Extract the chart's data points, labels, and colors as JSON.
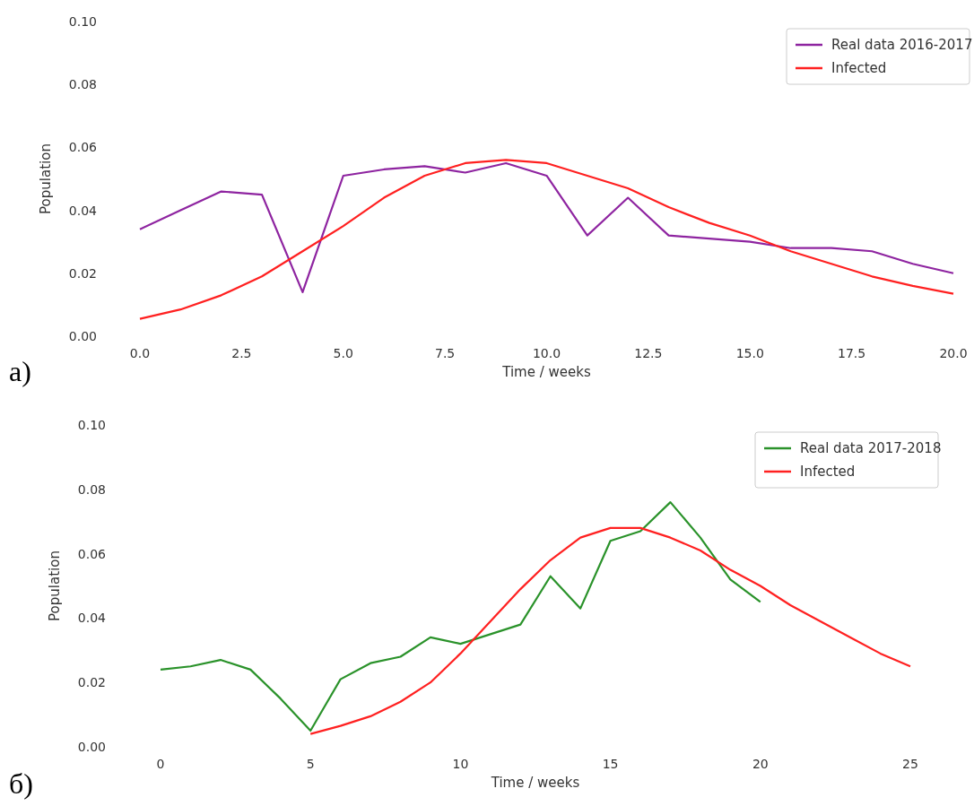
{
  "chart_data": [
    {
      "type": "line",
      "xlabel": "Time / weeks",
      "ylabel": "Population",
      "xlim": [
        0,
        20
      ],
      "ylim": [
        0,
        0.1
      ],
      "xticks": [
        {
          "value": 0,
          "label": "0.0"
        },
        {
          "value": 2.5,
          "label": "2.5"
        },
        {
          "value": 5,
          "label": "5.0"
        },
        {
          "value": 7.5,
          "label": "7.5"
        },
        {
          "value": 10,
          "label": "10.0"
        },
        {
          "value": 12.5,
          "label": "12.5"
        },
        {
          "value": 15,
          "label": "15.0"
        },
        {
          "value": 17.5,
          "label": "17.5"
        },
        {
          "value": 20,
          "label": "20.0"
        }
      ],
      "yticks": [
        {
          "value": 0,
          "label": "0.00"
        },
        {
          "value": 0.02,
          "label": "0.02"
        },
        {
          "value": 0.04,
          "label": "0.04"
        },
        {
          "value": 0.06,
          "label": "0.06"
        },
        {
          "value": 0.08,
          "label": "0.08"
        },
        {
          "value": 0.1,
          "label": "0.10"
        }
      ],
      "legend": "top right",
      "annotations": [
        "a)"
      ],
      "series": [
        {
          "name": "Real data 2016-2017",
          "color": "#8e24a0",
          "x": [
            0,
            1,
            2,
            3,
            4,
            5,
            6,
            7,
            8,
            9,
            10,
            11,
            12,
            13,
            14,
            15,
            16,
            17,
            18,
            19,
            20
          ],
          "values": [
            0.034,
            0.04,
            0.046,
            0.045,
            0.014,
            0.051,
            0.053,
            0.054,
            0.052,
            0.055,
            0.051,
            0.032,
            0.044,
            0.032,
            0.031,
            0.03,
            0.028,
            0.028,
            0.027,
            0.023,
            0.02
          ]
        },
        {
          "name": "Infected",
          "color": "#ff2020",
          "x": [
            0,
            1,
            2,
            3,
            4,
            5,
            6,
            7,
            8,
            9,
            10,
            11,
            12,
            13,
            14,
            15,
            16,
            17,
            18,
            19,
            20
          ],
          "values": [
            0.0055,
            0.0085,
            0.013,
            0.019,
            0.027,
            0.035,
            0.044,
            0.051,
            0.055,
            0.056,
            0.055,
            0.051,
            0.047,
            0.041,
            0.036,
            0.032,
            0.027,
            0.023,
            0.019,
            0.016,
            0.0135
          ]
        }
      ]
    },
    {
      "type": "line",
      "xlabel": "Time / weeks",
      "ylabel": "Population",
      "xlim": [
        0,
        25
      ],
      "ylim": [
        0,
        0.1
      ],
      "xticks": [
        0,
        5,
        10,
        15,
        20,
        25
      ],
      "yticks": [
        {
          "value": 0,
          "label": "0.00"
        },
        {
          "value": 0.02,
          "label": "0.02"
        },
        {
          "value": 0.04,
          "label": "0.04"
        },
        {
          "value": 0.06,
          "label": "0.06"
        },
        {
          "value": 0.08,
          "label": "0.08"
        },
        {
          "value": 0.1,
          "label": "0.10"
        }
      ],
      "legend": "top right",
      "annotations": [
        "б)"
      ],
      "series": [
        {
          "name": "Real data 2017-2018",
          "color": "#2a922a",
          "x": [
            0,
            1,
            2,
            3,
            4,
            5,
            6,
            7,
            8,
            9,
            10,
            11,
            12,
            13,
            14,
            15,
            16,
            17,
            18,
            19,
            20
          ],
          "values": [
            0.024,
            0.025,
            0.027,
            0.024,
            0.015,
            0.005,
            0.021,
            0.026,
            0.028,
            0.034,
            0.032,
            0.035,
            0.038,
            0.053,
            0.043,
            0.064,
            0.067,
            0.076,
            0.065,
            0.052,
            0.045
          ]
        },
        {
          "name": "Infected",
          "color": "#ff2020",
          "x": [
            5,
            6,
            7,
            8,
            9,
            10,
            11,
            12,
            13,
            14,
            15,
            16,
            17,
            18,
            19,
            20,
            21,
            22,
            23,
            24,
            25
          ],
          "values": [
            0.004,
            0.0065,
            0.0095,
            0.014,
            0.02,
            0.029,
            0.039,
            0.049,
            0.058,
            0.065,
            0.068,
            0.068,
            0.065,
            0.061,
            0.055,
            0.05,
            0.044,
            0.039,
            0.034,
            0.029,
            0.025
          ]
        }
      ]
    }
  ]
}
